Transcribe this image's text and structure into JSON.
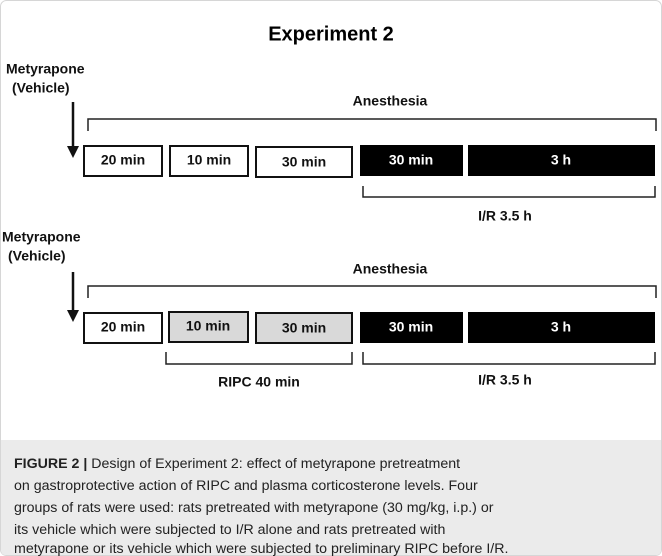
{
  "title": "Experiment 2",
  "panels": [
    {
      "drug": "Metyrapone",
      "vehicle": "(Vehicle)",
      "anesthesia": "Anesthesia",
      "boxes": [
        "20 min",
        "10 min",
        "30 min",
        "30 min",
        "3 h"
      ],
      "brackets": [
        "I/R 3.5 h"
      ]
    },
    {
      "drug": "Metyrapone",
      "vehicle": "(Vehicle)",
      "anesthesia": "Anesthesia",
      "boxes": [
        "20 min",
        "10 min",
        "30 min",
        "30 min",
        "3 h"
      ],
      "brackets": [
        "RIPC 40 min",
        "I/R 3.5 h"
      ]
    }
  ],
  "caption": {
    "label": "FIGURE 2 |",
    "lines": [
      " Design of Experiment 2: effect of metyrapone pretreatment",
      "on gastroprotective action of RIPC and plasma corticosterone levels. Four",
      "groups of rats were used: rats pretreated with metyrapone (30 mg/kg, i.p.) or",
      "its vehicle which were subjected to I/R alone and rats pretreated with",
      "metyrapone or its vehicle which were subjected to preliminary RIPC before I/R."
    ]
  }
}
